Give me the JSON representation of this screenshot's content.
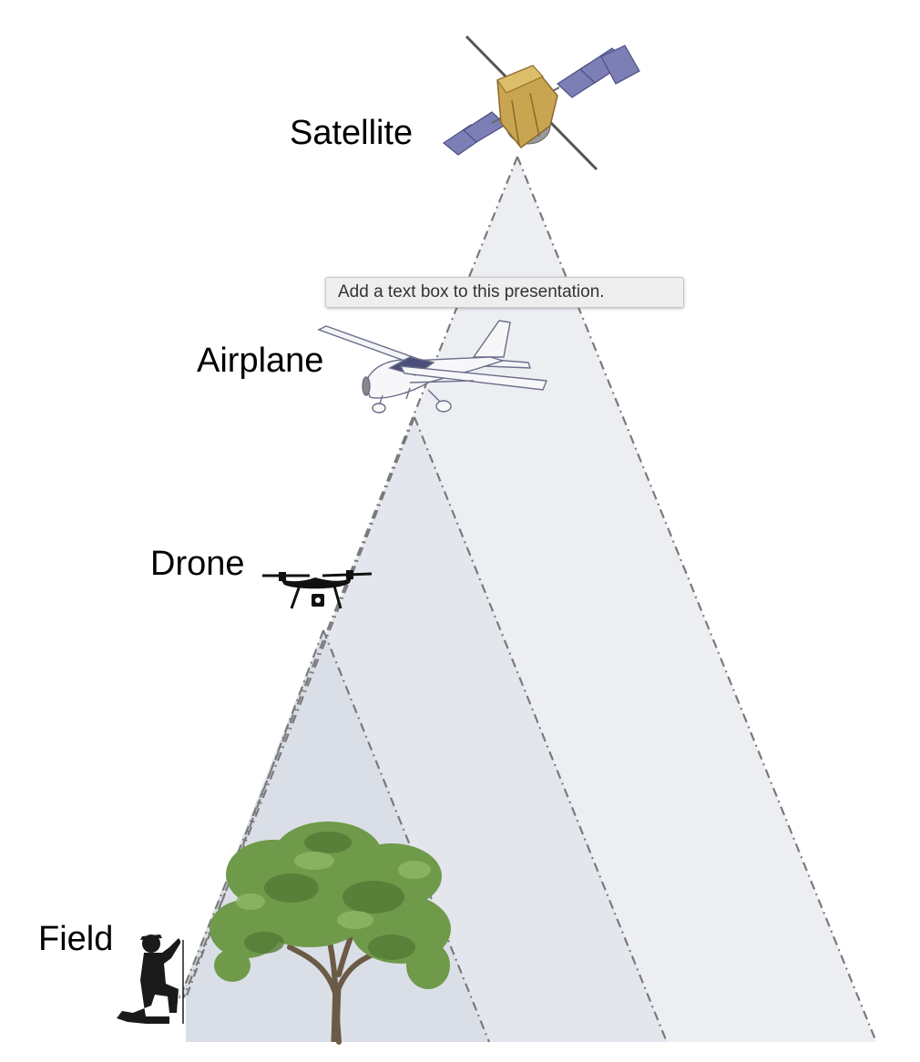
{
  "labels": {
    "satellite": "Satellite",
    "airplane": "Airplane",
    "drone": "Drone",
    "field": "Field"
  },
  "tooltip": {
    "text": "Add a text box to this presentation."
  },
  "colors": {
    "cone_satellite": "#eceef2",
    "cone_airplane": "#e3e6ed",
    "cone_drone": "#dadee7",
    "cone_line": "#7a7a7a",
    "solar_panel": "#7c7fb5",
    "satellite_body": "#c9a552",
    "tree_foliage": "#6f9a4a"
  }
}
